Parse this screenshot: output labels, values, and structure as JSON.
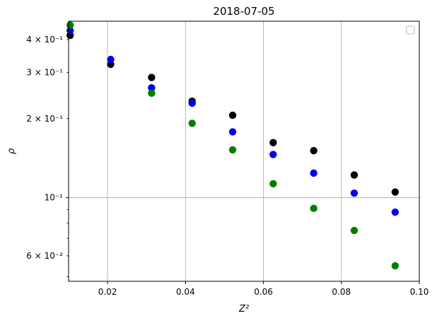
{
  "chart_data": {
    "type": "scatter",
    "title": "2018-07-05",
    "xlabel": "Z²",
    "ylabel": "ρ",
    "xlim": [
      0.01,
      0.1
    ],
    "ylim": [
      0.048,
      0.47
    ],
    "yscale": "log",
    "grid": true,
    "legend_placement": "top-right",
    "x_ticks": [
      {
        "value": 0.02,
        "label": "0.02"
      },
      {
        "value": 0.04,
        "label": "0.04"
      },
      {
        "value": 0.06,
        "label": "0.06"
      },
      {
        "value": 0.08,
        "label": "0.08"
      },
      {
        "value": 0.1,
        "label": "0.10"
      }
    ],
    "y_ticks": [
      {
        "value": 0.4,
        "label": "4 × 10⁻¹"
      },
      {
        "value": 0.3,
        "label": "3 × 10⁻¹"
      },
      {
        "value": 0.2,
        "label": "2 × 10⁻¹"
      },
      {
        "value": 0.1,
        "label": "10⁻¹"
      },
      {
        "value": 0.06,
        "label": "6 × 10⁻²"
      }
    ],
    "series": [
      {
        "color": "#000000",
        "points": [
          [
            0.0104,
            0.415
          ],
          [
            0.0208,
            0.322
          ],
          [
            0.0313,
            0.287
          ],
          [
            0.0417,
            0.233
          ],
          [
            0.0521,
            0.206
          ],
          [
            0.0625,
            0.162
          ],
          [
            0.0729,
            0.151
          ],
          [
            0.0833,
            0.122
          ],
          [
            0.0938,
            0.105
          ]
        ]
      },
      {
        "color": "#0000ee",
        "points": [
          [
            0.0104,
            0.433
          ],
          [
            0.0208,
            0.336
          ],
          [
            0.0313,
            0.262
          ],
          [
            0.0417,
            0.229
          ],
          [
            0.0521,
            0.178
          ],
          [
            0.0625,
            0.146
          ],
          [
            0.0729,
            0.124
          ],
          [
            0.0833,
            0.104
          ],
          [
            0.0938,
            0.088
          ]
        ]
      },
      {
        "color": "#007f00",
        "points": [
          [
            0.0104,
            0.454
          ],
          [
            0.0313,
            0.25
          ],
          [
            0.0417,
            0.192
          ],
          [
            0.0521,
            0.152
          ],
          [
            0.0625,
            0.113
          ],
          [
            0.0729,
            0.091
          ],
          [
            0.0833,
            0.075
          ],
          [
            0.0938,
            0.055
          ]
        ]
      }
    ]
  }
}
